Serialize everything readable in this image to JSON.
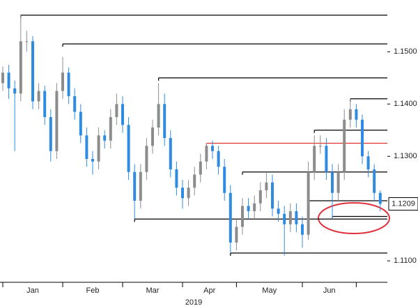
{
  "chart_data": {
    "type": "candlestick",
    "open": [
      1.144,
      1.146,
      1.143,
      1.142,
      1.152,
      1.152,
      1.1405,
      1.1425,
      1.1375,
      1.131,
      1.1425,
      1.146,
      1.1415,
      1.1385,
      1.134,
      1.1295,
      1.129,
      1.134,
      1.133,
      1.1375,
      1.14,
      1.136,
      1.127,
      1.1215,
      1.127,
      1.132,
      1.1355,
      1.14,
      1.1335,
      1.1275,
      1.124,
      1.122,
      1.124,
      1.1265,
      1.129,
      1.132,
      1.131,
      1.128,
      1.123,
      1.1135,
      1.1165,
      1.1205,
      1.1195,
      1.121,
      1.1235,
      1.125,
      1.12,
      1.119,
      1.117,
      1.1195,
      1.117,
      1.115,
      1.127,
      1.132,
      1.132,
      1.127,
      1.123,
      1.127,
      1.137,
      1.139,
      1.137,
      1.13,
      1.1275,
      1.123
    ],
    "high": [
      1.1472,
      1.1475,
      1.1445,
      1.157,
      1.154,
      1.153,
      1.144,
      1.1435,
      1.139,
      1.144,
      1.149,
      1.147,
      1.143,
      1.14,
      1.1355,
      1.131,
      1.1355,
      1.135,
      1.139,
      1.142,
      1.1415,
      1.1375,
      1.1285,
      1.1285,
      1.1335,
      1.137,
      1.144,
      1.142,
      1.135,
      1.129,
      1.1255,
      1.1255,
      1.128,
      1.1305,
      1.1325,
      1.133,
      1.132,
      1.1295,
      1.1245,
      1.118,
      1.122,
      1.122,
      1.1225,
      1.125,
      1.127,
      1.1265,
      1.1215,
      1.1205,
      1.121,
      1.121,
      1.1185,
      1.129,
      1.134,
      1.134,
      1.1335,
      1.1285,
      1.1285,
      1.139,
      1.141,
      1.14,
      1.138,
      1.131,
      1.1285,
      1.1235
    ],
    "low": [
      1.1425,
      1.141,
      1.131,
      1.1405,
      1.15,
      1.139,
      1.139,
      1.136,
      1.129,
      1.1295,
      1.141,
      1.14,
      1.137,
      1.1325,
      1.128,
      1.1265,
      1.1275,
      1.1315,
      1.1315,
      1.136,
      1.1345,
      1.1255,
      1.118,
      1.12,
      1.1255,
      1.1305,
      1.134,
      1.132,
      1.126,
      1.1225,
      1.12,
      1.1205,
      1.1225,
      1.125,
      1.1275,
      1.1295,
      1.1265,
      1.1215,
      1.1115,
      1.112,
      1.115,
      1.118,
      1.118,
      1.1195,
      1.122,
      1.1185,
      1.1175,
      1.111,
      1.1155,
      1.1155,
      1.1125,
      1.114,
      1.1255,
      1.1305,
      1.1255,
      1.118,
      1.1215,
      1.1255,
      1.1355,
      1.1355,
      1.1285,
      1.126,
      1.1215,
      1.1195
    ],
    "close": [
      1.146,
      1.143,
      1.142,
      1.152,
      1.152,
      1.1405,
      1.1425,
      1.1375,
      1.131,
      1.1425,
      1.146,
      1.1415,
      1.1385,
      1.134,
      1.1295,
      1.129,
      1.134,
      1.133,
      1.1375,
      1.14,
      1.136,
      1.127,
      1.1215,
      1.127,
      1.132,
      1.1355,
      1.14,
      1.1335,
      1.1275,
      1.124,
      1.122,
      1.124,
      1.1265,
      1.129,
      1.132,
      1.131,
      1.128,
      1.123,
      1.1135,
      1.1165,
      1.1205,
      1.1195,
      1.121,
      1.1235,
      1.125,
      1.12,
      1.119,
      1.117,
      1.1195,
      1.117,
      1.115,
      1.127,
      1.132,
      1.132,
      1.127,
      1.123,
      1.127,
      1.137,
      1.139,
      1.137,
      1.13,
      1.1275,
      1.123,
      1.1209
    ],
    "up_color": "#8c8c8c",
    "down_color": "#2f8be0",
    "months": [
      "Jan",
      "Feb",
      "Mar",
      "Apr",
      "May",
      "Jun"
    ],
    "month_start_index": [
      0,
      10,
      20,
      30,
      39,
      50,
      59
    ],
    "year": "2019",
    "levels": [
      {
        "value": 1.157,
        "from": 3,
        "color": "#000000"
      },
      {
        "value": 1.1515,
        "from": 10,
        "color": "#000000"
      },
      {
        "value": 1.145,
        "from": 26,
        "color": "#000000"
      },
      {
        "value": 1.141,
        "from": 58,
        "color": "#000000"
      },
      {
        "value": 1.135,
        "from": 52,
        "color": "#000000"
      },
      {
        "value": 1.1325,
        "from": 34,
        "color": "#e03030"
      },
      {
        "value": 1.127,
        "from": 40,
        "color": "#000000"
      },
      {
        "value": 1.1215,
        "from": 51,
        "color": "#000000"
      },
      {
        "value": 1.118,
        "from": 22,
        "color": "#000000"
      },
      {
        "value": 1.1185,
        "from": 55,
        "color": "#000000"
      },
      {
        "value": 1.1115,
        "from": 38,
        "color": "#000000"
      }
    ],
    "ylim": [
      1.1059,
      1.1599
    ],
    "yticks": [
      {
        "value": 1.15,
        "label": "1.1500"
      },
      {
        "value": 1.14,
        "label": "1.1400"
      },
      {
        "value": 1.13,
        "label": "1.1300"
      },
      {
        "value": 1.11,
        "label": "1.1100"
      }
    ]
  }
}
